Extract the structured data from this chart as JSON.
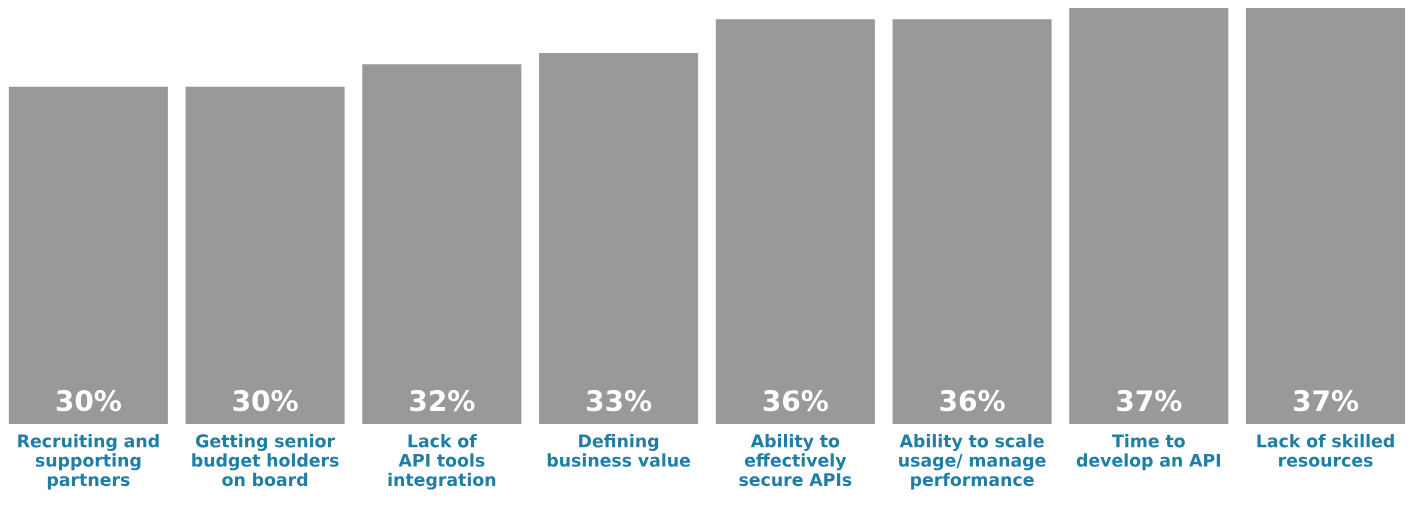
{
  "chart_data": {
    "type": "bar",
    "categories": [
      "Recruiting and supporting partners",
      "Getting senior budget holders on board",
      "Lack of API tools integration",
      "Defining business value",
      "Ability to effectively secure APIs",
      "Ability to scale usage/ manage performance",
      "Time to develop an API",
      "Lack of skilled resources"
    ],
    "values": [
      30,
      30,
      32,
      33,
      36,
      36,
      37,
      37
    ],
    "value_labels": [
      "30%",
      "30%",
      "32%",
      "33%",
      "36%",
      "36%",
      "37%",
      "37%"
    ],
    "color": "#98999b"
  }
}
